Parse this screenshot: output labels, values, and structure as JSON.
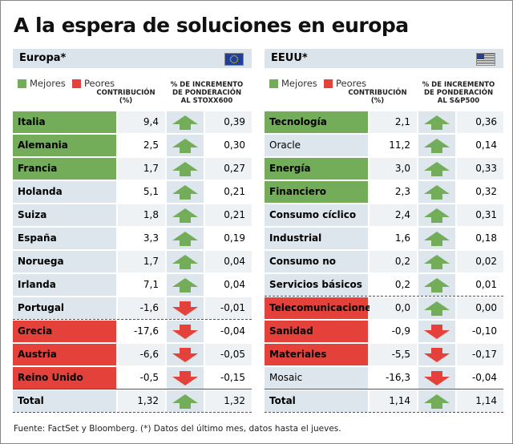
{
  "title": "A la espera de soluciones en europa",
  "panels": [
    {
      "title": "Europa*",
      "flag": "eu",
      "legend": {
        "better": "Mejores",
        "worse": "Peores"
      },
      "contribution_header": [
        "CONTRIBUCIÓN",
        "(%)"
      ],
      "increment_header": [
        "% DE INCREMENTO",
        "DE PONDERACIÓN",
        "AL STOXX600"
      ],
      "rows": [
        {
          "name": "Italia",
          "contribution": "9,4",
          "increment": "0,39",
          "status": "better",
          "arrow": "up"
        },
        {
          "name": "Alemania",
          "contribution": "2,5",
          "increment": "0,30",
          "status": "better",
          "arrow": "up"
        },
        {
          "name": "Francia",
          "contribution": "1,7",
          "increment": "0,27",
          "status": "better",
          "arrow": "up"
        },
        {
          "name": "Holanda",
          "contribution": "5,1",
          "increment": "0,21",
          "arrow": "up"
        },
        {
          "name": "Suiza",
          "contribution": "1,8",
          "increment": "0,21",
          "arrow": "up"
        },
        {
          "name": "España",
          "contribution": "3,3",
          "increment": "0,19",
          "arrow": "up"
        },
        {
          "name": "Noruega",
          "contribution": "1,7",
          "increment": "0,04",
          "arrow": "up"
        },
        {
          "name": "Irlanda",
          "contribution": "7,1",
          "increment": "0,04",
          "arrow": "up"
        },
        {
          "name": "Portugal",
          "contribution": "-1,6",
          "increment": "-0,01",
          "arrow": "down"
        },
        {
          "name": "Grecia",
          "contribution": "-17,6",
          "increment": "-0,04",
          "status": "worse",
          "arrow": "down"
        },
        {
          "name": "Austria",
          "contribution": "-6,6",
          "increment": "-0,05",
          "status": "worse",
          "arrow": "down"
        },
        {
          "name": "Reino Unido",
          "contribution": "-0,5",
          "increment": "-0,15",
          "status": "worse",
          "arrow": "down"
        },
        {
          "name": "Total",
          "contribution": "1,32",
          "increment": "1,32",
          "arrow": "up"
        }
      ]
    },
    {
      "title": "EEUU*",
      "flag": "us",
      "legend": {
        "better": "Mejores",
        "worse": "Peores"
      },
      "contribution_header": [
        "CONTRIBUCIÓN",
        "(%)"
      ],
      "increment_header": [
        "% DE INCREMENTO",
        "DE PONDERACIÓN",
        "AL S&P500"
      ],
      "rows": [
        {
          "name": "Tecnología",
          "contribution": "2,1",
          "increment": "0,36",
          "status": "better",
          "arrow": "up"
        },
        {
          "name": "Oracle",
          "contribution": "11,2",
          "increment": "0,14",
          "arrow": "up",
          "bold": false
        },
        {
          "name": "Energía",
          "contribution": "3,0",
          "increment": "0,33",
          "status": "better",
          "arrow": "up"
        },
        {
          "name": "Financiero",
          "contribution": "2,3",
          "increment": "0,32",
          "status": "better",
          "arrow": "up"
        },
        {
          "name": "Consumo cíclico",
          "contribution": "2,4",
          "increment": "0,31",
          "arrow": "up"
        },
        {
          "name": "Industrial",
          "contribution": "1,6",
          "increment": "0,18",
          "arrow": "up"
        },
        {
          "name": "Consumo no cíclico",
          "contribution": "0,2",
          "increment": "0,02",
          "arrow": "up"
        },
        {
          "name": "Servicios básicos",
          "contribution": "0,2",
          "increment": "0,01",
          "arrow": "up"
        },
        {
          "name": "Telecomunicaciones",
          "contribution": "0,0",
          "increment": "0,00",
          "status": "worse",
          "arrow": "up"
        },
        {
          "name": "Sanidad",
          "contribution": "-0,9",
          "increment": "-0,10",
          "status": "worse",
          "arrow": "down"
        },
        {
          "name": "Materiales básicos",
          "contribution": "-5,5",
          "increment": "-0,17",
          "status": "worse",
          "arrow": "down"
        },
        {
          "name": "Mosaic",
          "contribution": "-16,3",
          "increment": "-0,04",
          "arrow": "down",
          "bold": false
        },
        {
          "name": "Total",
          "contribution": "1,14",
          "increment": "1,14",
          "arrow": "up"
        }
      ]
    }
  ],
  "source": "Fuente: FactSet y Bloomberg. (*) Datos del último mes, datos hasta el jueves."
}
